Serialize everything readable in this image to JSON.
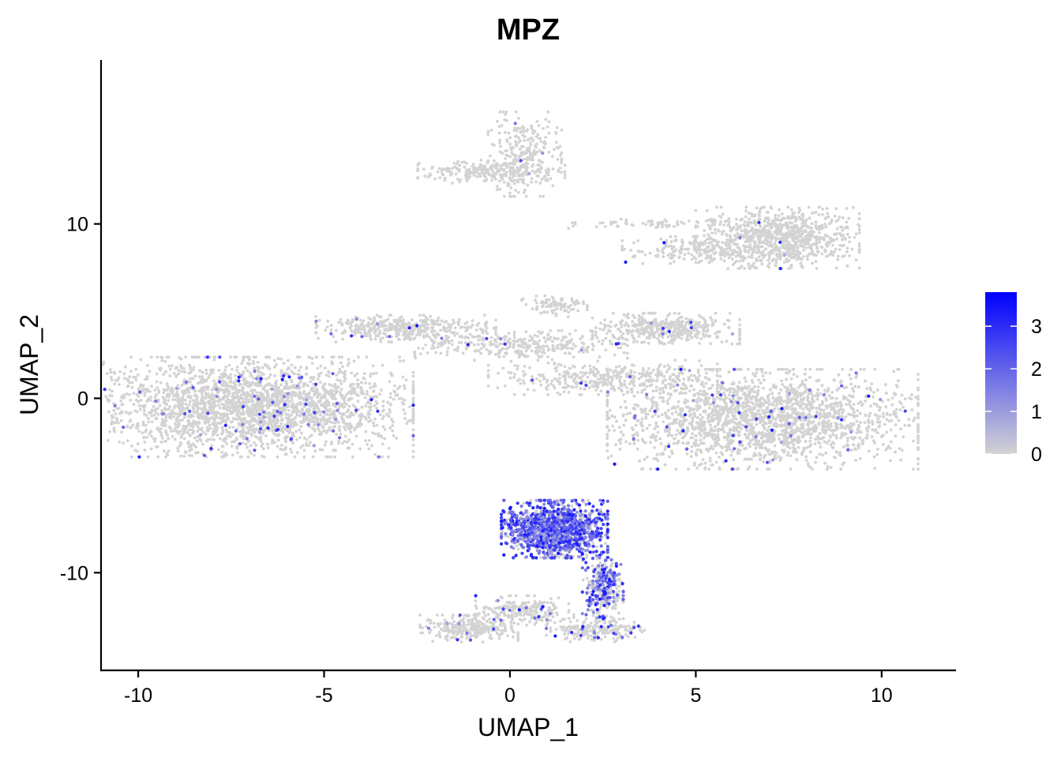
{
  "chart_data": {
    "type": "scatter",
    "title": "MPZ",
    "xlabel": "UMAP_1",
    "ylabel": "UMAP_2",
    "xlim": [
      -11,
      12
    ],
    "ylim": [
      -15.6,
      19.4
    ],
    "x_ticks": [
      -10,
      -5,
      0,
      5,
      10
    ],
    "x_tick_labels": [
      "-10",
      "-5",
      "0",
      "5",
      "10"
    ],
    "y_ticks": [
      -10,
      0,
      10
    ],
    "y_tick_labels": [
      "-10",
      "0",
      "10"
    ],
    "grid": false,
    "color_scale": {
      "low_color": "#d3d3d3",
      "high_color": "#0000ff",
      "min": 0,
      "max": 3.8,
      "ticks": [
        0,
        1,
        2,
        3
      ],
      "tick_labels": [
        "0",
        "1",
        "2",
        "3"
      ],
      "legend_position": "right"
    },
    "clusters": [
      {
        "cx": -7.0,
        "cy": -0.5,
        "sx": 2.0,
        "sy": 1.3,
        "n": 2600,
        "expr": 0.03
      },
      {
        "cx": -2.8,
        "cy": 4.0,
        "sx": 1.1,
        "sy": 0.35,
        "n": 420,
        "expr": 0.02
      },
      {
        "cx": 0.3,
        "cy": 3.0,
        "sx": 1.3,
        "sy": 0.4,
        "n": 320,
        "expr": 0.02
      },
      {
        "cx": 2.5,
        "cy": 1.2,
        "sx": 1.4,
        "sy": 0.45,
        "n": 380,
        "expr": 0.02
      },
      {
        "cx": 6.8,
        "cy": -1.2,
        "sx": 1.9,
        "sy": 1.3,
        "n": 2700,
        "expr": 0.02
      },
      {
        "cx": 4.2,
        "cy": 4.0,
        "sx": 0.9,
        "sy": 0.4,
        "n": 420,
        "expr": 0.01
      },
      {
        "cx": 1.2,
        "cy": 5.3,
        "sx": 0.4,
        "sy": 0.3,
        "n": 90,
        "expr": 0.01
      },
      {
        "cx": 7.2,
        "cy": 9.2,
        "sx": 1.0,
        "sy": 0.8,
        "n": 900,
        "expr": 0.01
      },
      {
        "cx": 5.0,
        "cy": 8.5,
        "sx": 0.9,
        "sy": 0.35,
        "n": 180,
        "expr": 0.01
      },
      {
        "cx": 3.5,
        "cy": 10.0,
        "sx": 0.9,
        "sy": 0.15,
        "n": 60,
        "expr": 0.0
      },
      {
        "cx": 0.4,
        "cy": 14.0,
        "sx": 0.45,
        "sy": 1.1,
        "n": 260,
        "expr": 0.01
      },
      {
        "cx": -0.5,
        "cy": 13.0,
        "sx": 0.9,
        "sy": 0.3,
        "n": 240,
        "expr": 0.01
      },
      {
        "cx": 1.2,
        "cy": -7.5,
        "sx": 0.65,
        "sy": 0.75,
        "n": 1300,
        "expr": 0.7
      },
      {
        "cx": 2.5,
        "cy": -10.8,
        "sx": 0.25,
        "sy": 0.9,
        "n": 360,
        "expr": 0.45
      },
      {
        "cx": 2.3,
        "cy": -13.3,
        "sx": 0.6,
        "sy": 0.3,
        "n": 200,
        "expr": 0.08
      },
      {
        "cx": -1.1,
        "cy": -13.2,
        "sx": 0.6,
        "sy": 0.35,
        "n": 280,
        "expr": 0.02
      },
      {
        "cx": 0.4,
        "cy": -12.2,
        "sx": 0.6,
        "sy": 0.4,
        "n": 220,
        "expr": 0.03
      }
    ]
  }
}
